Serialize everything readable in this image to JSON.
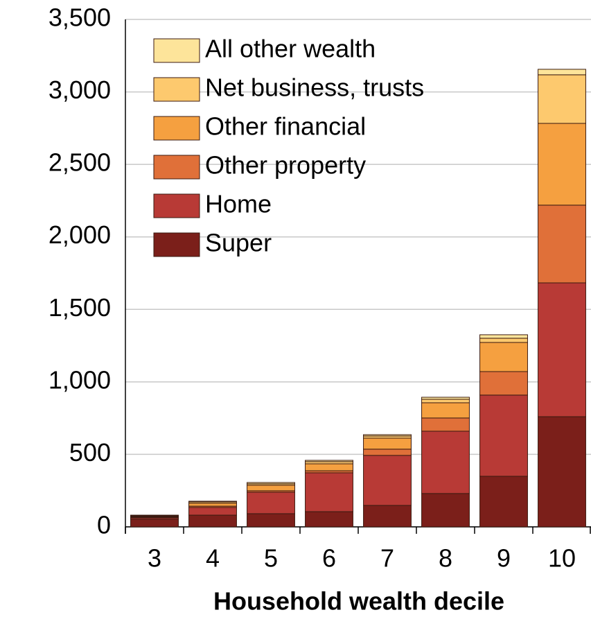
{
  "chart_data": {
    "type": "stacked_bar",
    "x_label": "Household wealth decile",
    "categories": [
      "3",
      "4",
      "5",
      "6",
      "7",
      "8",
      "9",
      "10"
    ],
    "series": [
      {
        "name": "Super",
        "color": "#7b1f1a",
        "values": [
          53,
          81,
          91,
          105,
          148,
          230,
          349,
          760
        ]
      },
      {
        "name": "Home",
        "color": "#b83a36",
        "values": [
          9,
          53,
          148,
          268,
          345,
          430,
          560,
          923
        ]
      },
      {
        "name": "Other property",
        "color": "#e07039",
        "values": [
          5,
          9,
          10,
          14,
          43,
          91,
          162,
          536
        ]
      },
      {
        "name": "Other financial",
        "color": "#f5a040",
        "values": [
          5,
          20,
          38,
          48,
          76,
          105,
          201,
          564
        ]
      },
      {
        "name": "Net business, trusts",
        "color": "#fdc96e",
        "values": [
          5,
          9,
          10,
          15,
          15,
          24,
          29,
          335
        ]
      },
      {
        "name": "All other wealth",
        "color": "#fde49a",
        "values": [
          4,
          5,
          9,
          9,
          9,
          14,
          24,
          38
        ]
      }
    ],
    "ylim": [
      0,
      3500
    ],
    "yticks": [
      0,
      500,
      {
        "value": 1000,
        "label": "1,000"
      },
      {
        "value": 1500,
        "label": "1,500"
      },
      {
        "value": 2000,
        "label": "2,000"
      },
      {
        "value": 2500,
        "label": "2,500"
      },
      {
        "value": 3000,
        "label": "3,000"
      },
      {
        "value": 3500,
        "label": "3,500"
      }
    ],
    "grid": true,
    "legend": "upper left"
  }
}
